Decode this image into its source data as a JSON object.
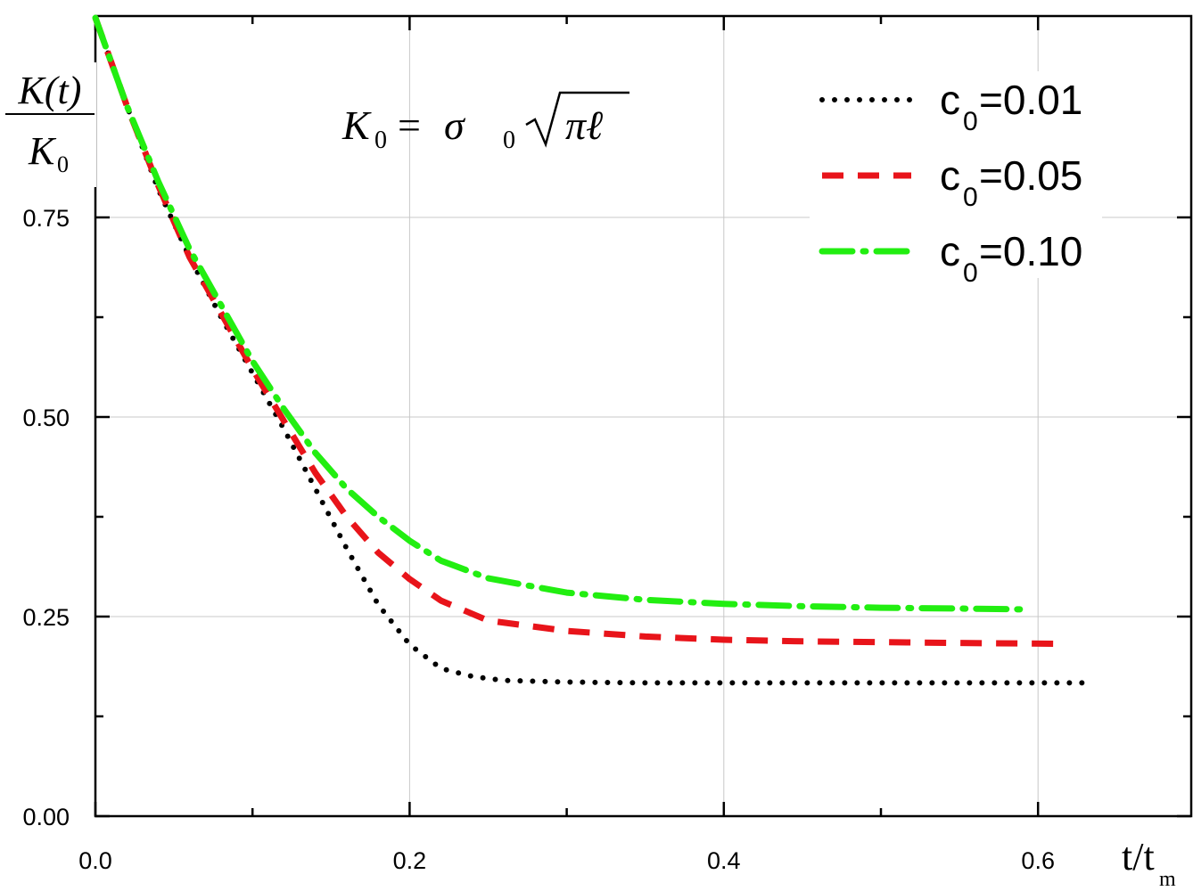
{
  "chart_data": {
    "type": "line",
    "title": "",
    "xlabel": {
      "main": "t/t",
      "sub": "m"
    },
    "ylabel": {
      "numerator": "K(t)",
      "denominator": "K",
      "denominator_sub": "0"
    },
    "annotation": {
      "lhs": "K",
      "lhs_sub": "0",
      "rhs_sigma": "σ",
      "rhs_sigma_sub": "0",
      "rhs_radicand": "πℓ"
    },
    "xlim": [
      0.0,
      0.7
    ],
    "ylim": [
      0.0,
      1.0
    ],
    "xticks": [
      "0.0",
      "0.2",
      "0.4",
      "0.6"
    ],
    "yticks": [
      "0.00",
      "0.25",
      "0.50",
      "0.75"
    ],
    "grid": true,
    "legend_position": "top-right",
    "series": [
      {
        "name": "c",
        "name_sub": "0",
        "name_suffix": "=0.01",
        "style": "dotted",
        "color": "#000000",
        "x": [
          0.0,
          0.02,
          0.04,
          0.06,
          0.08,
          0.1,
          0.12,
          0.14,
          0.16,
          0.18,
          0.2,
          0.22,
          0.24,
          0.26,
          0.3,
          0.35,
          0.4,
          0.45,
          0.5,
          0.55,
          0.6,
          0.63
        ],
        "y": [
          1.0,
          0.89,
          0.785,
          0.7,
          0.625,
          0.555,
          0.485,
          0.41,
          0.335,
          0.265,
          0.215,
          0.185,
          0.175,
          0.17,
          0.168,
          0.167,
          0.167,
          0.167,
          0.167,
          0.167,
          0.167,
          0.167
        ]
      },
      {
        "name": "c",
        "name_sub": "0",
        "name_suffix": "=0.05",
        "style": "dashed",
        "color": "#e8141a",
        "x": [
          0.0,
          0.02,
          0.04,
          0.06,
          0.08,
          0.1,
          0.12,
          0.14,
          0.16,
          0.18,
          0.2,
          0.22,
          0.25,
          0.3,
          0.35,
          0.4,
          0.45,
          0.5,
          0.55,
          0.61
        ],
        "y": [
          1.0,
          0.89,
          0.79,
          0.7,
          0.63,
          0.56,
          0.495,
          0.43,
          0.375,
          0.33,
          0.297,
          0.27,
          0.245,
          0.232,
          0.225,
          0.221,
          0.219,
          0.218,
          0.217,
          0.216
        ]
      },
      {
        "name": "c",
        "name_sub": "0",
        "name_suffix": "=0.10",
        "style": "dashdot",
        "color": "#22ee11",
        "x": [
          0.0,
          0.02,
          0.04,
          0.06,
          0.08,
          0.1,
          0.12,
          0.14,
          0.16,
          0.18,
          0.2,
          0.22,
          0.25,
          0.3,
          0.35,
          0.4,
          0.45,
          0.5,
          0.55,
          0.59
        ],
        "y": [
          1.0,
          0.89,
          0.795,
          0.71,
          0.64,
          0.57,
          0.51,
          0.455,
          0.41,
          0.375,
          0.345,
          0.32,
          0.298,
          0.28,
          0.271,
          0.266,
          0.263,
          0.261,
          0.26,
          0.259
        ]
      }
    ]
  }
}
